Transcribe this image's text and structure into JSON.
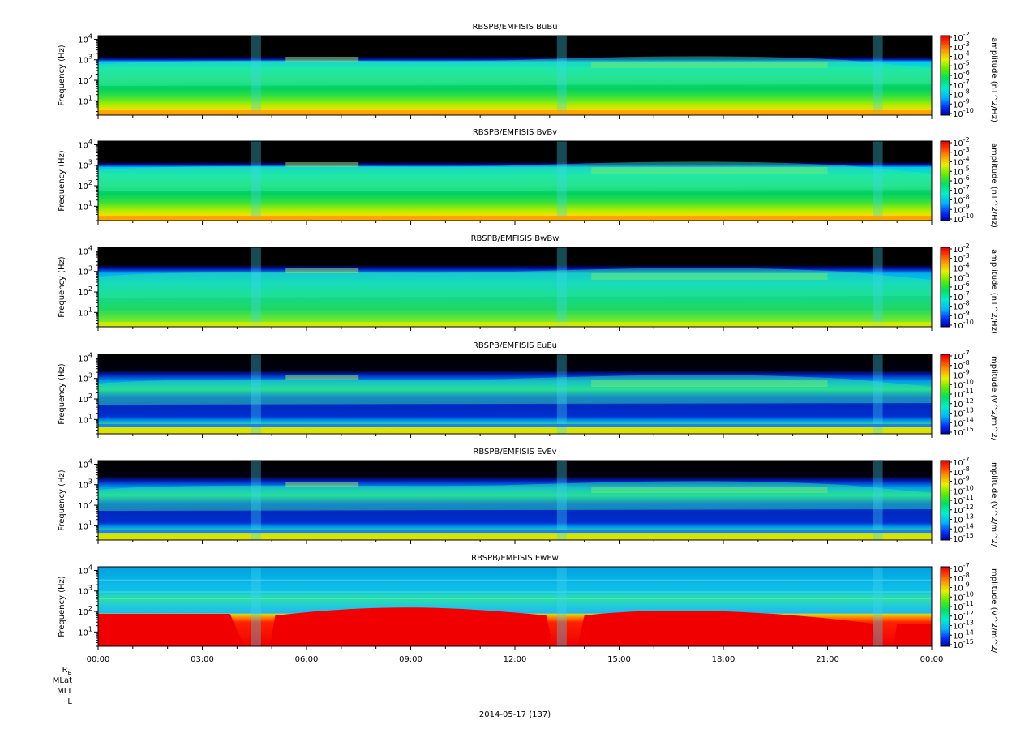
{
  "chart_data": {
    "type": "heatmap",
    "y_scale": "log",
    "ylim": [
      2,
      15000
    ],
    "y_ticks": [
      {
        "base": "10",
        "exp": "1"
      },
      {
        "base": "10",
        "exp": "2"
      },
      {
        "base": "10",
        "exp": "3"
      },
      {
        "base": "10",
        "exp": "4"
      }
    ],
    "x_tick_labels": [
      "00:00",
      "03:00",
      "06:00",
      "09:00",
      "12:00",
      "15:00",
      "18:00",
      "21:00",
      "00:00"
    ],
    "xlim_hours": [
      0,
      24
    ],
    "date_label": "2014-05-17 (137)",
    "orbit_labels": [
      "MLat",
      "MLT",
      "L"
    ],
    "orbit_first": {
      "main": "R",
      "sub": "E"
    },
    "panels": [
      {
        "title": "RBSPB/EMFISIS  BuBu",
        "ylabel": "Frequency (Hz)",
        "cb_label": "amplitude (nT^2/Hz)",
        "cb_exps": [
          "-2",
          "-3",
          "-4",
          "-5",
          "-6",
          "-7",
          "-8",
          "-9",
          "-10"
        ],
        "kind": "B"
      },
      {
        "title": "RBSPB/EMFISIS  BvBv",
        "ylabel": "Frequency (Hz)",
        "cb_label": "amplitude (nT^2/Hz)",
        "cb_exps": [
          "-2",
          "-3",
          "-4",
          "-5",
          "-6",
          "-7",
          "-8",
          "-9",
          "-10"
        ],
        "kind": "B"
      },
      {
        "title": "RBSPB/EMFISIS  BwBw",
        "ylabel": "Frequency (Hz)",
        "cb_label": "amplitude (nT^2/Hz)",
        "cb_exps": [
          "-2",
          "-3",
          "-4",
          "-5",
          "-6",
          "-7",
          "-8",
          "-9",
          "-10"
        ],
        "kind": "Bw"
      },
      {
        "title": "RBSPB/EMFISIS  EuEu",
        "ylabel": "Frequency (Hz)",
        "cb_label": "mplitude (V^2/m^2/",
        "cb_exps": [
          "-7",
          "-8",
          "-9",
          "-10",
          "-11",
          "-12",
          "-13",
          "-14",
          "-15"
        ],
        "kind": "E"
      },
      {
        "title": "RBSPB/EMFISIS  EvEv",
        "ylabel": "Frequency (Hz)",
        "cb_label": "mplitude (V^2/m^2/",
        "cb_exps": [
          "-7",
          "-8",
          "-9",
          "-10",
          "-11",
          "-12",
          "-13",
          "-14",
          "-15"
        ],
        "kind": "E"
      },
      {
        "title": "RBSPB/EMFISIS  EwEw",
        "ylabel": "Frequency (Hz)",
        "cb_label": "mplitude (V^2/m^2/",
        "cb_exps": [
          "-7",
          "-8",
          "-9",
          "-10",
          "-11",
          "-12",
          "-13",
          "-14",
          "-15"
        ],
        "kind": "Ew"
      }
    ]
  }
}
